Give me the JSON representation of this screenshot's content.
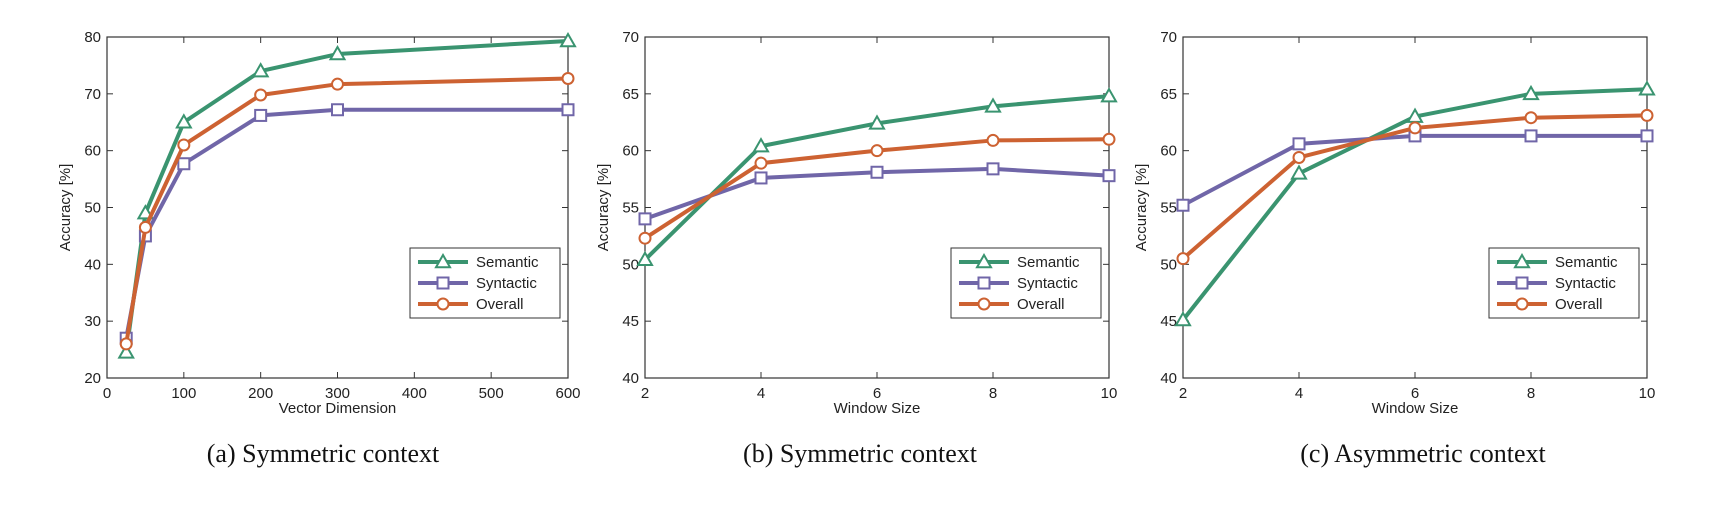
{
  "colors": {
    "semantic": "#3a9470",
    "syntactic": "#7066a8",
    "overall": "#cd6232"
  },
  "chart_data": [
    {
      "type": "line",
      "caption": "(a)  Symmetric context",
      "xlabel": "Vector Dimension",
      "ylabel": "Accuracy [%]",
      "xlim": [
        0,
        600
      ],
      "ylim": [
        20,
        80
      ],
      "xticks": [
        0,
        100,
        200,
        300,
        400,
        500,
        600
      ],
      "yticks": [
        20,
        30,
        40,
        50,
        60,
        70,
        80
      ],
      "x": [
        25,
        50,
        100,
        200,
        300,
        600
      ],
      "legend_position": "bottom-right",
      "series": [
        {
          "name": "Semantic",
          "marker": "triangle",
          "values": [
            24.5,
            49,
            65,
            74,
            77,
            79.3
          ]
        },
        {
          "name": "Syntactic",
          "marker": "square",
          "values": [
            27,
            45,
            57.7,
            66.2,
            67.2,
            67.2
          ]
        },
        {
          "name": "Overall",
          "marker": "circle",
          "values": [
            26,
            46.5,
            61,
            69.8,
            71.7,
            72.7
          ]
        }
      ]
    },
    {
      "type": "line",
      "caption": "(b)  Symmetric context",
      "xlabel": "Window Size",
      "ylabel": "Accuracy [%]",
      "xlim": [
        2,
        10
      ],
      "ylim": [
        40,
        70
      ],
      "xticks": [
        2,
        4,
        6,
        8,
        10
      ],
      "yticks": [
        40,
        45,
        50,
        55,
        60,
        65,
        70
      ],
      "x": [
        2,
        4,
        6,
        8,
        10
      ],
      "legend_position": "bottom-right",
      "series": [
        {
          "name": "Semantic",
          "marker": "triangle",
          "values": [
            50.4,
            60.4,
            62.4,
            63.9,
            64.8
          ]
        },
        {
          "name": "Syntactic",
          "marker": "square",
          "values": [
            54,
            57.6,
            58.1,
            58.4,
            57.8
          ]
        },
        {
          "name": "Overall",
          "marker": "circle",
          "values": [
            52.3,
            58.9,
            60,
            60.9,
            61
          ]
        }
      ]
    },
    {
      "type": "line",
      "caption": "(c)  Asymmetric context",
      "xlabel": "Window Size",
      "ylabel": "Accuracy [%]",
      "xlim": [
        2,
        10
      ],
      "ylim": [
        40,
        70
      ],
      "xticks": [
        2,
        4,
        6,
        8,
        10
      ],
      "yticks": [
        40,
        45,
        50,
        55,
        60,
        65,
        70
      ],
      "x": [
        2,
        4,
        6,
        8,
        10
      ],
      "legend_position": "bottom-right",
      "series": [
        {
          "name": "Semantic",
          "marker": "triangle",
          "values": [
            45.1,
            58,
            63,
            65,
            65.4
          ]
        },
        {
          "name": "Syntactic",
          "marker": "square",
          "values": [
            55.2,
            60.6,
            61.3,
            61.3,
            61.3
          ]
        },
        {
          "name": "Overall",
          "marker": "circle",
          "values": [
            50.5,
            59.4,
            62,
            62.9,
            63.1
          ]
        }
      ]
    }
  ]
}
